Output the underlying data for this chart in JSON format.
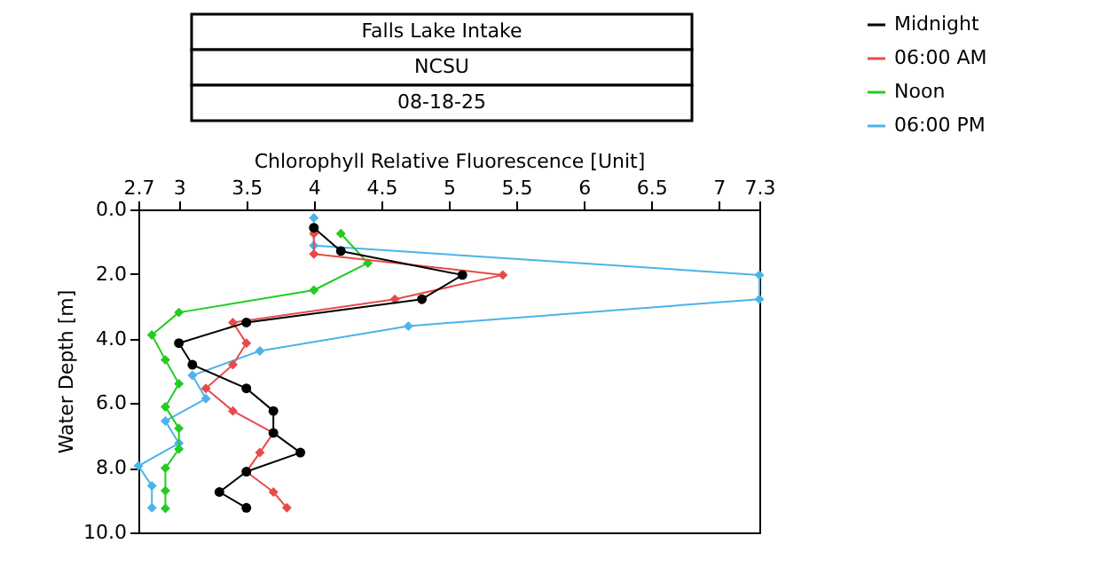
{
  "chart_data": {
    "type": "line",
    "title": "Falls Lake Intake",
    "subtitle": "NCSU",
    "annotations": [
      "08-18-25"
    ],
    "xlabel": "Chlorophyll Relative Fluorescence [Unit]",
    "ylabel": "Water Depth [m]",
    "xlim": [
      2.7,
      7.3
    ],
    "xticks": [
      2.7,
      3,
      3.5,
      4,
      4.5,
      5,
      5.5,
      6,
      6.5,
      7,
      7.3
    ],
    "ylim": [
      10,
      0
    ],
    "yticks": [
      {
        "value": 0,
        "label": "0.0"
      },
      {
        "value": 2,
        "label": "2.0"
      },
      {
        "value": 4,
        "label": "4.0"
      },
      {
        "value": 6,
        "label": "6.0"
      },
      {
        "value": 8,
        "label": "8.0"
      },
      {
        "value": 10,
        "label": "10.0"
      }
    ],
    "grid": false,
    "legend": "top right",
    "line_style": "solid",
    "series": [
      {
        "name": "Midnight",
        "color": "#000000",
        "marker": "circle",
        "x": [
          4.0,
          4.2,
          5.1,
          4.8,
          3.5,
          3.0,
          3.1,
          3.5,
          3.7,
          3.7,
          3.9,
          3.5,
          3.3,
          3.5
        ],
        "values": [
          0.57,
          1.29,
          2.03,
          2.78,
          3.5,
          4.14,
          4.81,
          5.54,
          6.24,
          6.92,
          7.53,
          8.12,
          8.75,
          9.24
        ]
      },
      {
        "name": "06:00 AM",
        "color": "#e84a4a",
        "marker": "diamond",
        "x": [
          4.0,
          4.0,
          5.4,
          4.6,
          3.4,
          3.5,
          3.4,
          3.2,
          3.4,
          3.7,
          3.6,
          3.5,
          3.7,
          3.8
        ],
        "values": [
          0.75,
          1.38,
          2.03,
          2.78,
          3.5,
          4.14,
          4.81,
          5.54,
          6.24,
          6.92,
          7.53,
          8.12,
          8.75,
          9.24
        ]
      },
      {
        "name": "Noon",
        "color": "#22cc22",
        "marker": "diamond",
        "x": [
          4.2,
          4.4,
          4.0,
          3.0,
          2.8,
          2.9,
          3.0,
          2.9,
          3.0,
          3.0,
          2.9,
          2.9,
          2.9
        ],
        "values": [
          0.75,
          1.66,
          2.5,
          3.19,
          3.89,
          4.66,
          5.4,
          6.11,
          6.78,
          7.42,
          8.01,
          8.71,
          9.26
        ]
      },
      {
        "name": "06:00 PM",
        "color": "#4ab4e8",
        "marker": "diamond",
        "x": [
          4.0,
          4.0,
          7.3,
          7.3,
          4.7,
          3.6,
          3.1,
          3.2,
          2.9,
          3.0,
          2.7,
          2.8,
          2.8
        ],
        "values": [
          0.26,
          1.12,
          2.03,
          2.78,
          3.61,
          4.38,
          5.14,
          5.86,
          6.55,
          7.24,
          7.94,
          8.56,
          9.24
        ]
      }
    ]
  }
}
